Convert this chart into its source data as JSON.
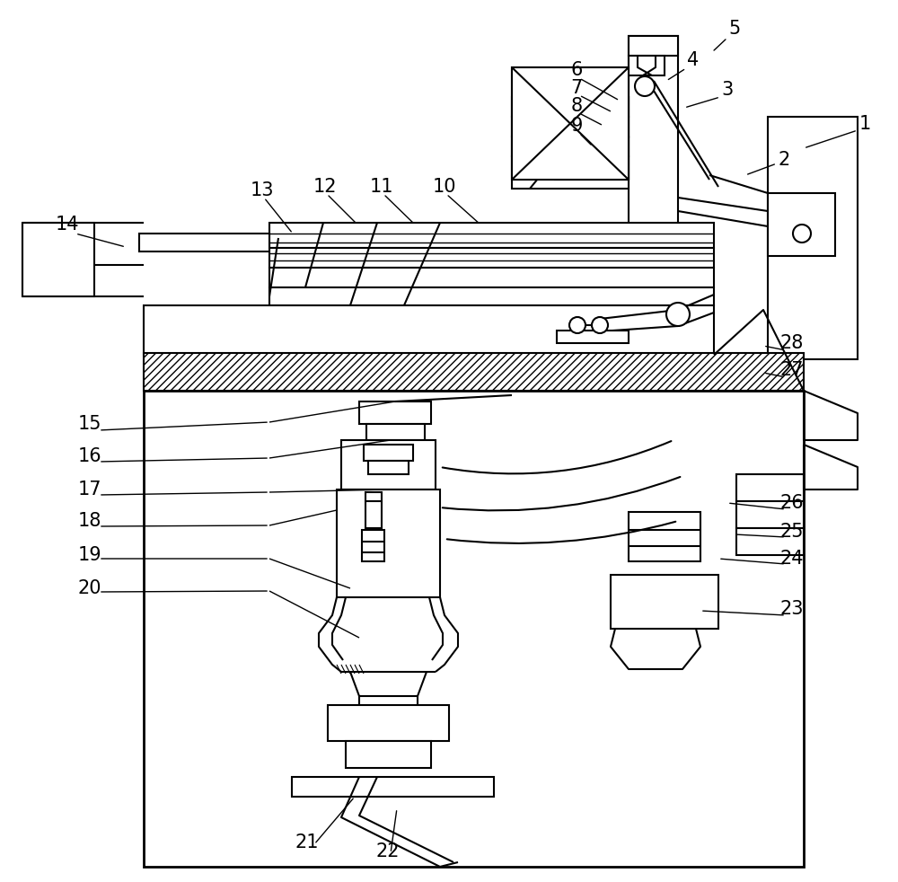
{
  "background_color": "#ffffff",
  "line_color": "#000000",
  "label_fontsize": 15,
  "figsize": [
    10.0,
    9.82
  ],
  "dpi": 100
}
